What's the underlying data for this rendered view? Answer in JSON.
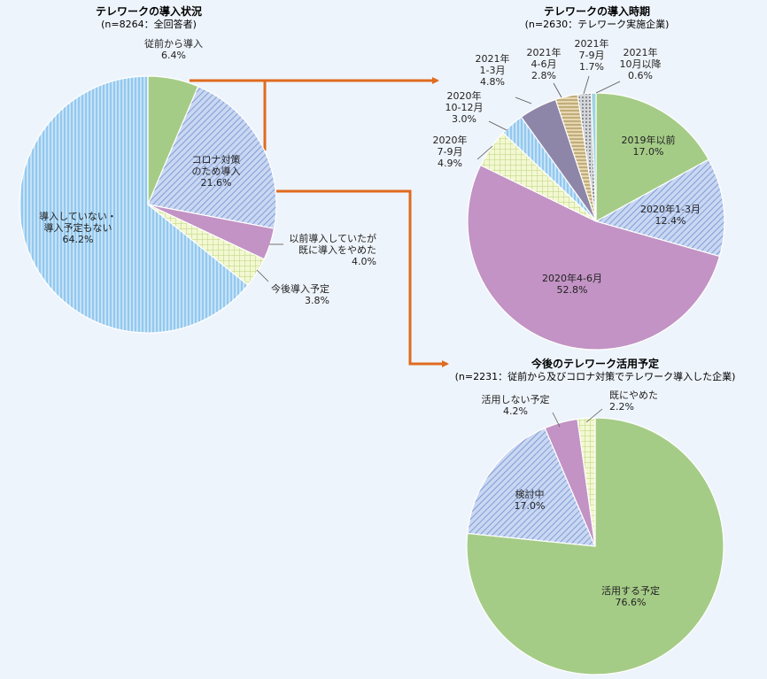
{
  "chart_data": [
    {
      "type": "pie",
      "title": "テレワークの導入状況",
      "subtitle": "(n=8264：全回答者)",
      "slices": [
        {
          "label": [
            "従前から導入"
          ],
          "value": "6.4%",
          "pct": 6.4,
          "color": "#a5cc87"
        },
        {
          "label": [
            "コロナ対策",
            "のため導入"
          ],
          "value": "21.6%",
          "pct": 21.6,
          "color": "#b7c9ec",
          "pattern": "diag-blue"
        },
        {
          "label": [
            "以前導入していたが",
            "既に導入をやめた"
          ],
          "value": "4.0%",
          "pct": 4.0,
          "color": "#c293c4"
        },
        {
          "label": [
            "今後導入予定"
          ],
          "value": "3.8%",
          "pct": 3.8,
          "color": "#e9f2b0",
          "pattern": "check-green"
        },
        {
          "label": [
            "導入していない・",
            "導入予定もない"
          ],
          "value": "64.2%",
          "pct": 64.2,
          "color": "#a9d3f3",
          "pattern": "vert-blue"
        }
      ]
    },
    {
      "type": "pie",
      "title": "テレワークの導入時期",
      "subtitle": "(n=2630：テレワーク実施企業)",
      "slices": [
        {
          "label": [
            "2019年以前"
          ],
          "value": "17.0%",
          "pct": 17.0,
          "color": "#a5cc87"
        },
        {
          "label": [
            "2020年1-3月"
          ],
          "value": "12.4%",
          "pct": 12.4,
          "color": "#b7c9ec",
          "pattern": "diag-blue"
        },
        {
          "label": [
            "2020年4-6月"
          ],
          "value": "52.8%",
          "pct": 52.8,
          "color": "#c293c4"
        },
        {
          "label": [
            "2020年",
            "7-9月"
          ],
          "value": "4.9%",
          "pct": 4.9,
          "color": "#e9f2b0",
          "pattern": "check-green"
        },
        {
          "label": [
            "2020年",
            "10-12月"
          ],
          "value": "3.0%",
          "pct": 3.0,
          "color": "#a9d3f3",
          "pattern": "vert-blue"
        },
        {
          "label": [
            "2021年",
            "1-3月"
          ],
          "value": "4.8%",
          "pct": 4.8,
          "color": "#8e86a8"
        },
        {
          "label": [
            "2021年",
            "4-6月"
          ],
          "value": "2.8%",
          "pct": 2.8,
          "color": "#d2bf8f",
          "pattern": "horiz-tan"
        },
        {
          "label": [
            "2021年",
            "7-9月"
          ],
          "value": "1.7%",
          "pct": 1.7,
          "color": "#b9bdc3",
          "pattern": "dots-gray"
        },
        {
          "label": [
            "2021年",
            "10月以降"
          ],
          "value": "0.6%",
          "pct": 0.6,
          "color": "#9fd4e0"
        }
      ]
    },
    {
      "type": "pie",
      "title": "今後のテレワーク活用予定",
      "subtitle": "(n=2231：従前から及びコロナ対策でテレワーク導入した企業)",
      "slices": [
        {
          "label": [
            "活用する予定"
          ],
          "value": "76.6%",
          "pct": 76.6,
          "color": "#a5cc87"
        },
        {
          "label": [
            "検討中"
          ],
          "value": "17.0%",
          "pct": 17.0,
          "color": "#b7c9ec",
          "pattern": "diag-blue"
        },
        {
          "label": [
            "活用しない予定"
          ],
          "value": "4.2%",
          "pct": 4.2,
          "color": "#c293c4"
        },
        {
          "label": [
            "既にやめた"
          ],
          "value": "2.2%",
          "pct": 2.2,
          "color": "#e9f2b0",
          "pattern": "check-green"
        }
      ]
    }
  ]
}
